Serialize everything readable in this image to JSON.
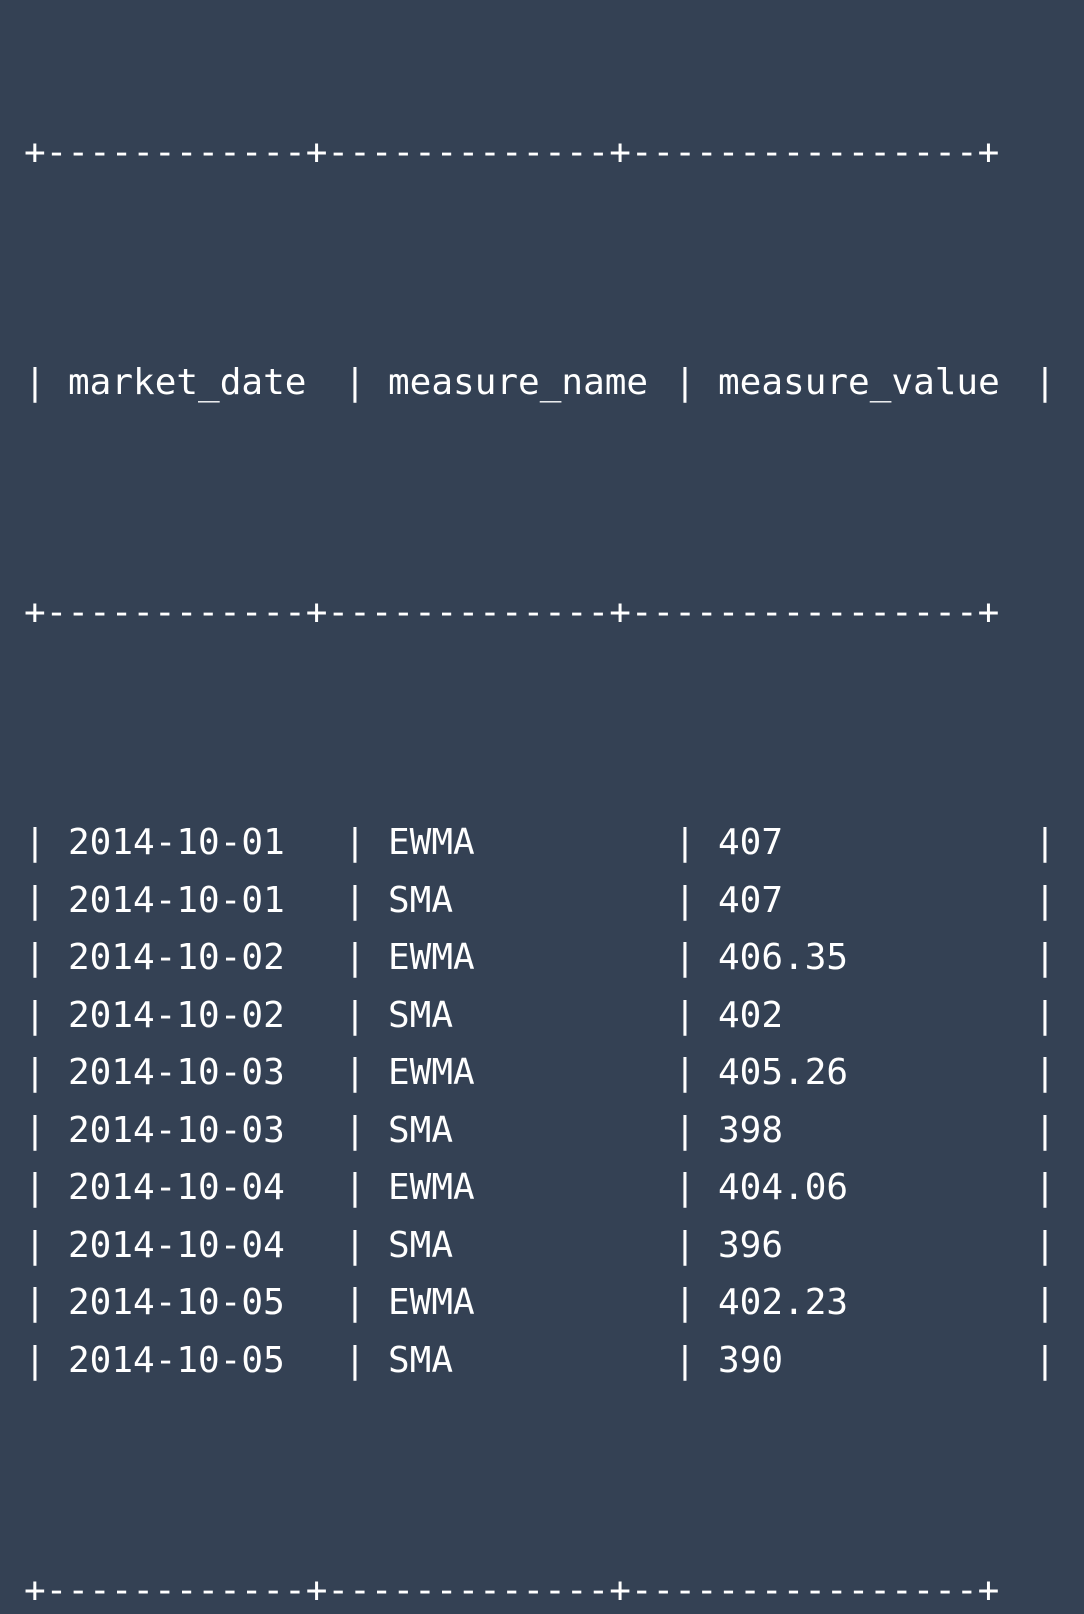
{
  "table": {
    "border": "+------------+-------------+----------------+",
    "headers": [
      "market_date",
      "measure_name",
      "measure_value"
    ],
    "rows": [
      [
        "2014-10-01",
        "EWMA",
        "407"
      ],
      [
        "2014-10-01",
        "SMA",
        "407"
      ],
      [
        "2014-10-02",
        "EWMA",
        "406.35"
      ],
      [
        "2014-10-02",
        "SMA",
        "402"
      ],
      [
        "2014-10-03",
        "EWMA",
        "405.26"
      ],
      [
        "2014-10-03",
        "SMA",
        "398"
      ],
      [
        "2014-10-04",
        "EWMA",
        "404.06"
      ],
      [
        "2014-10-04",
        "SMA",
        "396"
      ],
      [
        "2014-10-05",
        "EWMA",
        "402.23"
      ],
      [
        "2014-10-05",
        "SMA",
        "390"
      ]
    ]
  },
  "colors": {
    "background": "#344154",
    "text": "#ffffff"
  }
}
